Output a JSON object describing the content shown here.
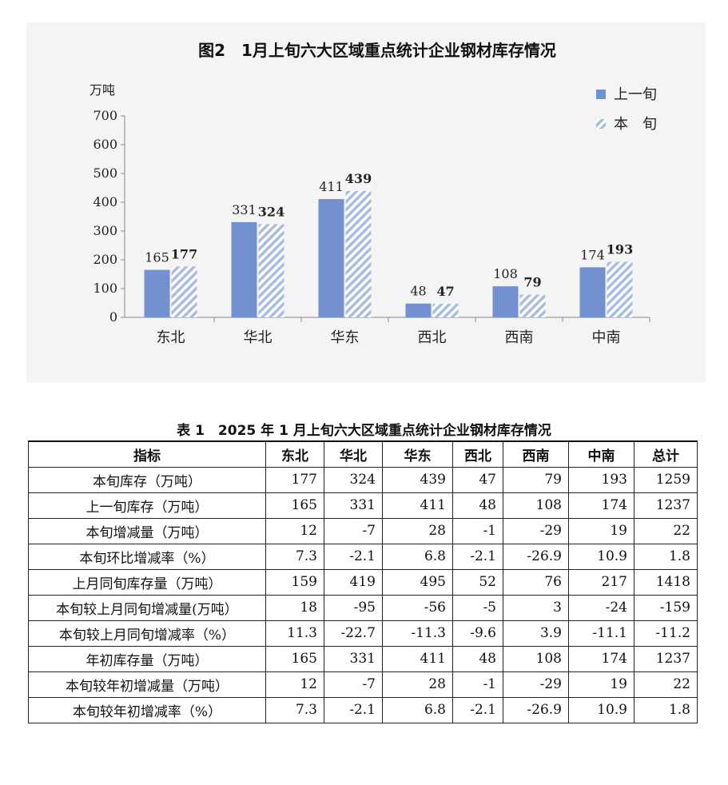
{
  "chart_data": {
    "type": "bar",
    "title": "图2　1月上旬六大区域重点统计企业钢材库存情况",
    "xlabel": "",
    "ylabel": "万吨",
    "categories": [
      "东北",
      "华北",
      "华东",
      "西北",
      "西南",
      "中南"
    ],
    "series": [
      {
        "name": "上一旬",
        "values": [
          165,
          331,
          411,
          48,
          108,
          174
        ],
        "color": "#7391d0",
        "fill": "solid"
      },
      {
        "name": "本　旬",
        "values": [
          177,
          324,
          439,
          47,
          79,
          193
        ],
        "color": "#a7bbe6",
        "fill": "hatched"
      }
    ],
    "ylim": [
      0,
      700
    ],
    "yticks": [
      0,
      100,
      200,
      300,
      400,
      500,
      600,
      700
    ],
    "grid": false,
    "legend_position": "top-right",
    "background_color": "#f4f4f4"
  },
  "table": {
    "title": "表 1　2025 年 1 月上旬六大区域重点统计企业钢材库存情况",
    "headers": [
      "指标",
      "东北",
      "华北",
      "华东",
      "西北",
      "西南",
      "中南",
      "总计"
    ],
    "rows": [
      [
        "本旬库存（万吨）",
        "177",
        "324",
        "439",
        "47",
        "79",
        "193",
        "1259"
      ],
      [
        "上一旬库存（万吨）",
        "165",
        "331",
        "411",
        "48",
        "108",
        "174",
        "1237"
      ],
      [
        "本旬增减量（万吨）",
        "12",
        "-7",
        "28",
        "-1",
        "-29",
        "19",
        "22"
      ],
      [
        "本旬环比增减率（%）",
        "7.3",
        "-2.1",
        "6.8",
        "-2.1",
        "-26.9",
        "10.9",
        "1.8"
      ],
      [
        "上月同旬库存量（万吨）",
        "159",
        "419",
        "495",
        "52",
        "76",
        "217",
        "1418"
      ],
      [
        "本旬较上月同旬增减量(万吨）",
        "18",
        "-95",
        "-56",
        "-5",
        "3",
        "-24",
        "-159"
      ],
      [
        "本旬较上月同旬增减率（%）",
        "11.3",
        "-22.7",
        "-11.3",
        "-9.6",
        "3.9",
        "-11.1",
        "-11.2"
      ],
      [
        "年初库存量（万吨）",
        "165",
        "331",
        "411",
        "48",
        "108",
        "174",
        "1237"
      ],
      [
        "本旬较年初增减量（万吨）",
        "12",
        "-7",
        "28",
        "-1",
        "-29",
        "19",
        "22"
      ],
      [
        "本旬较年初增减率（%）",
        "7.3",
        "-2.1",
        "6.8",
        "-2.1",
        "-26.9",
        "10.9",
        "1.8"
      ]
    ]
  }
}
